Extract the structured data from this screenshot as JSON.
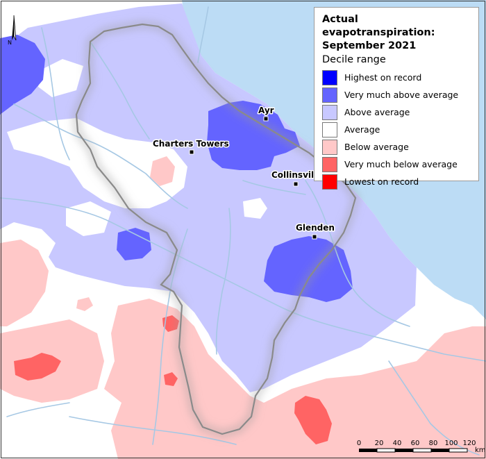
{
  "legend": {
    "title_line1": "Actual evapotranspiration:",
    "title_line2": "September 2021",
    "subtitle": "Decile range",
    "items": [
      {
        "label": "Highest on record",
        "color": "#0000ff"
      },
      {
        "label": "Very much above average",
        "color": "#6464ff"
      },
      {
        "label": "Above average",
        "color": "#c8c8ff"
      },
      {
        "label": "Average",
        "color": "#ffffff"
      },
      {
        "label": "Below average",
        "color": "#ffc8c8"
      },
      {
        "label": "Very much below average",
        "color": "#ff6464"
      },
      {
        "label": "Lowest on record",
        "color": "#ff0000"
      }
    ]
  },
  "towns": [
    {
      "name": "Ayr"
    },
    {
      "name": "Charters Towers"
    },
    {
      "name": "Collinsvil"
    },
    {
      "name": "Glenden"
    }
  ],
  "north_arrow": {
    "label": "N"
  },
  "scale_bar": {
    "ticks": [
      "0",
      "20",
      "40",
      "60",
      "80",
      "100",
      "120"
    ],
    "unit": "km"
  },
  "colors": {
    "sea": "#bcdcf5",
    "river": "#a6c8e4",
    "catchment_border": "#8a8a8a"
  }
}
